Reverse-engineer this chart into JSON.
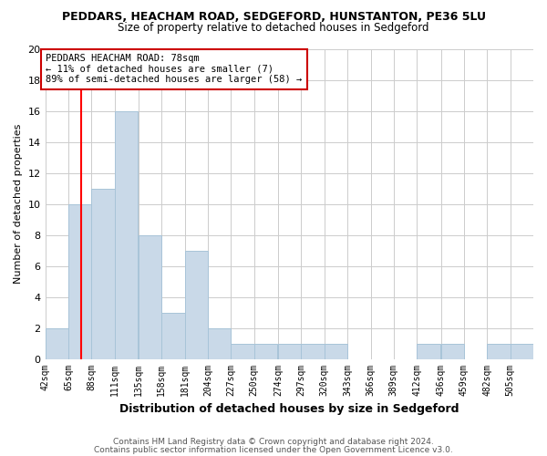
{
  "title": "PEDDARS, HEACHAM ROAD, SEDGEFORD, HUNSTANTON, PE36 5LU",
  "subtitle": "Size of property relative to detached houses in Sedgeford",
  "xlabel": "Distribution of detached houses by size in Sedgeford",
  "ylabel": "Number of detached properties",
  "bins": [
    42,
    65,
    88,
    111,
    135,
    158,
    181,
    204,
    227,
    250,
    274,
    297,
    320,
    343,
    366,
    389,
    412,
    436,
    459,
    482,
    505
  ],
  "counts": [
    2,
    10,
    11,
    16,
    8,
    3,
    7,
    2,
    1,
    1,
    1,
    1,
    1,
    0,
    0,
    0,
    1,
    1,
    0,
    1,
    1
  ],
  "bar_color": "#c9d9e8",
  "bar_edge_color": "#a8c4d8",
  "red_line_x": 78,
  "annotation_title": "PEDDARS HEACHAM ROAD: 78sqm",
  "annotation_line1": "← 11% of detached houses are smaller (7)",
  "annotation_line2": "89% of semi-detached houses are larger (58) →",
  "annotation_box_color": "#ffffff",
  "annotation_box_edge": "#cc0000",
  "ylim": [
    0,
    20
  ],
  "yticks": [
    0,
    2,
    4,
    6,
    8,
    10,
    12,
    14,
    16,
    18,
    20
  ],
  "footer1": "Contains HM Land Registry data © Crown copyright and database right 2024.",
  "footer2": "Contains public sector information licensed under the Open Government Licence v3.0.",
  "bg_color": "#ffffff",
  "grid_color": "#cccccc",
  "title_fontsize": 9,
  "subtitle_fontsize": 8.5,
  "ylabel_fontsize": 8,
  "xlabel_fontsize": 9,
  "tick_fontsize": 7,
  "ann_fontsize": 7.5,
  "footer_fontsize": 6.5
}
